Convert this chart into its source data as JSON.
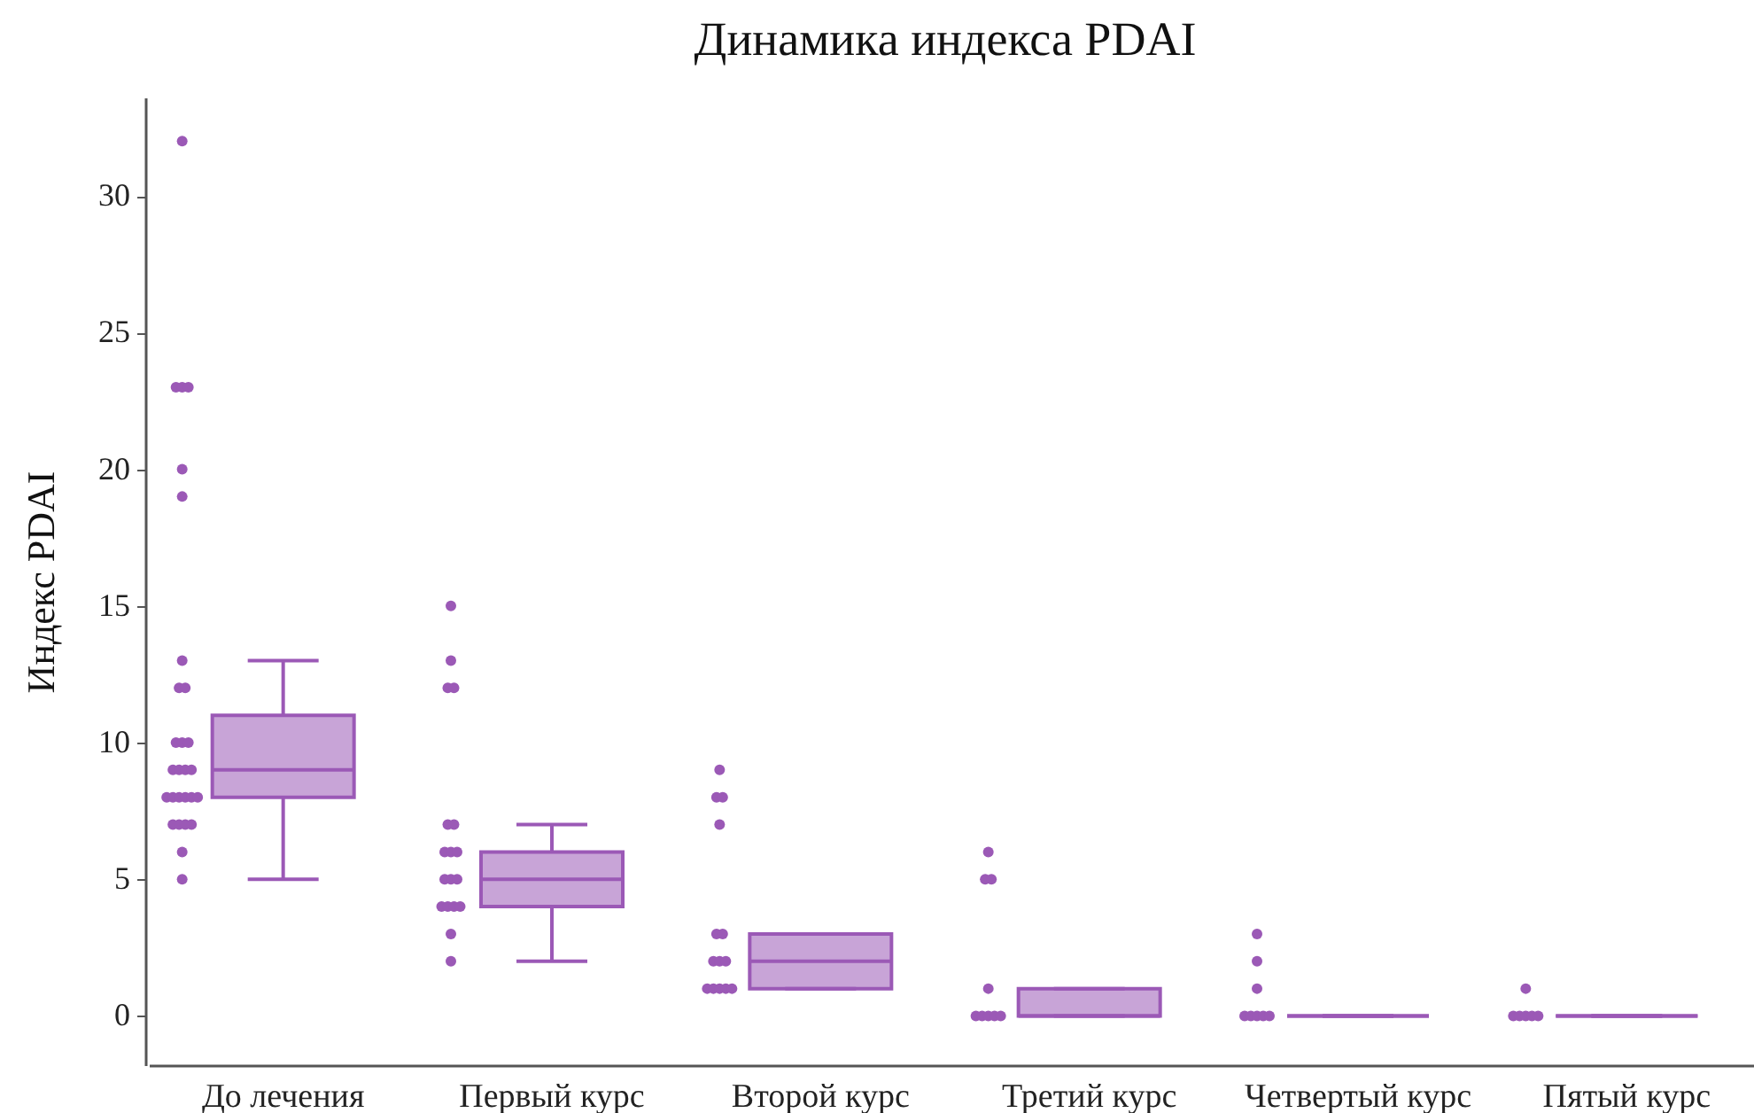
{
  "chart_data": {
    "type": "box",
    "title": "Динамика индекса PDAI",
    "ylabel": "Индекс PDAI",
    "categories": [
      "До лечения",
      "Первый курс",
      "Второй курс",
      "Третий курс",
      "Четвертый курс",
      "Пятый курс"
    ],
    "ylim": [
      -1.8,
      33.6
    ],
    "yticks": [
      0,
      5,
      10,
      15,
      20,
      25,
      30
    ],
    "grid": false,
    "series": [
      {
        "color": "#9b59b6",
        "boxes": [
          {
            "low": 5,
            "q1": 8,
            "median": 9,
            "q3": 11,
            "high": 13
          },
          {
            "low": 2,
            "q1": 4,
            "median": 5,
            "q3": 6,
            "high": 7
          },
          {
            "low": 1,
            "q1": 1,
            "median": 2,
            "q3": 3,
            "high": 3
          },
          {
            "low": 0,
            "q1": 0,
            "median": 0,
            "q3": 1,
            "high": 1
          },
          {
            "low": 0,
            "q1": 0,
            "median": 0,
            "q3": 0,
            "high": 0
          },
          {
            "low": 0,
            "q1": 0,
            "median": 0,
            "q3": 0,
            "high": 0
          }
        ]
      },
      {
        "type": "scatter",
        "color": "#9b59b6",
        "marker": "circle",
        "x": [
          "До лечения",
          "До лечения",
          "До лечения",
          "До лечения",
          "До лечения",
          "До лечения",
          "До лечения",
          "До лечения",
          "До лечения",
          "До лечения",
          "До лечения",
          "До лечения",
          "До лечения",
          "До лечения",
          "До лечения",
          "До лечения",
          "До лечения",
          "До лечения",
          "До лечения",
          "До лечения",
          "До лечения",
          "До лечения",
          "До лечения",
          "До лечения",
          "До лечения",
          "До лечения",
          "До лечения",
          "До лечения",
          "Первый курс",
          "Первый курс",
          "Первый курс",
          "Первый курс",
          "Первый курс",
          "Первый курс",
          "Первый курс",
          "Первый курс",
          "Первый курс",
          "Первый курс",
          "Первый курс",
          "Первый курс",
          "Первый курс",
          "Первый курс",
          "Первый курс",
          "Первый курс",
          "Первый курс",
          "Первый курс",
          "Второй курс",
          "Второй курс",
          "Второй курс",
          "Второй курс",
          "Второй курс",
          "Второй курс",
          "Второй курс",
          "Второй курс",
          "Второй курс",
          "Второй курс",
          "Второй курс",
          "Второй курс",
          "Второй курс",
          "Второй курс",
          "Третий курс",
          "Третий курс",
          "Третий курс",
          "Третий курс",
          "Третий курс",
          "Третий курс",
          "Третий курс",
          "Третий курс",
          "Третий курс",
          "Четвертый курс",
          "Четвертый курс",
          "Четвертый курс",
          "Четвертый курс",
          "Четвертый курс",
          "Четвертый курс",
          "Четвертый курс",
          "Четвертый курс",
          "Пятый курс",
          "Пятый курс",
          "Пятый курс",
          "Пятый курс",
          "Пятый курс",
          "Пятый курс"
        ],
        "values": [
          32,
          23,
          23,
          23,
          20,
          19,
          13,
          12,
          12,
          10,
          10,
          10,
          9,
          9,
          9,
          9,
          8,
          8,
          8,
          8,
          8,
          8,
          7,
          7,
          7,
          7,
          6,
          5,
          15,
          13,
          12,
          12,
          7,
          7,
          6,
          6,
          6,
          5,
          5,
          5,
          4,
          4,
          4,
          4,
          3,
          2,
          9,
          8,
          8,
          7,
          3,
          3,
          2,
          2,
          2,
          1,
          1,
          1,
          1,
          1,
          6,
          5,
          5,
          1,
          0,
          0,
          0,
          0,
          0,
          3,
          2,
          1,
          0,
          0,
          0,
          0,
          0,
          1,
          0,
          0,
          0,
          0,
          0
        ]
      }
    ]
  }
}
